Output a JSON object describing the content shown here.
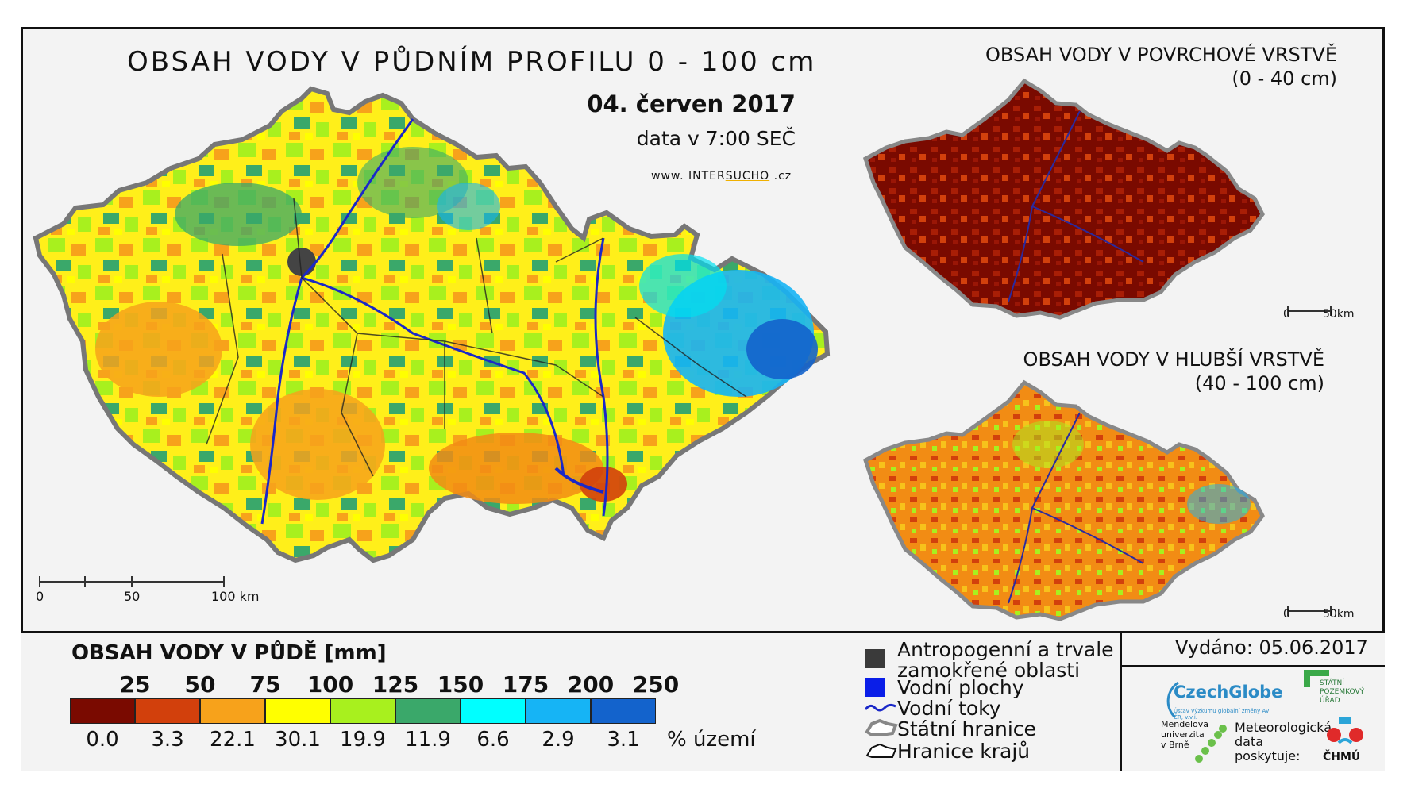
{
  "header": {
    "title": "OBSAH VODY V PŮDNÍM PROFILU 0 - 100 cm",
    "date": "04. červen 2017",
    "time": "data v 7:00 SEČ",
    "website_prefix": "www. INTER",
    "website_highlight": "SUCHO",
    "website_suffix": " .cz"
  },
  "inset_top": {
    "title_line1": "OBSAH VODY V POVRCHOVÉ VRSTVĚ",
    "title_line2": "(0 - 40 cm)",
    "scale_start": "0",
    "scale_end": "50km"
  },
  "inset_bottom": {
    "title_line1": "OBSAH VODY V HLUBŠÍ VRSTVĚ",
    "title_line2": "(40 - 100 cm)",
    "scale_start": "0",
    "scale_end": "50km"
  },
  "main_scale": {
    "labels": [
      "0",
      "50",
      "100 km"
    ]
  },
  "legend": {
    "title": "OBSAH VODY V PŮDĚ [mm]",
    "thresholds": [
      "25",
      "50",
      "75",
      "100",
      "125",
      "150",
      "175",
      "200",
      "250"
    ],
    "colors": [
      "#7a0a00",
      "#d2400c",
      "#f7a21b",
      "#ffff00",
      "#a8f01e",
      "#3aa86a",
      "#00ffff",
      "#16b4f5",
      "#1363cc"
    ],
    "percentages": [
      "0.0",
      "3.3",
      "22.1",
      "30.1",
      "19.9",
      "11.9",
      "6.6",
      "2.9",
      "3.1"
    ],
    "percent_unit": "% území"
  },
  "symbols": {
    "anthropogenic_line1": "Antropogenní a trvale",
    "anthropogenic_line2": "zamokřené oblasti",
    "anthropogenic_color": "#3a3a3a",
    "water_bodies": "Vodní plochy",
    "water_bodies_color": "#0a1ee8",
    "rivers": "Vodní toky",
    "rivers_color": "#1a28c8",
    "state_border": "Státní hranice",
    "region_border": "Hranice krajů"
  },
  "issued": {
    "label": "Vydáno: 05.06.2017"
  },
  "logos": {
    "czechglobe": "CzechGlobe",
    "czechglobe_sub": "Ústav výzkumu globální změny AV ČR, v.v.i.",
    "spu_line1": "STÁTNÍ",
    "spu_line2": "POZEMKOVÝ",
    "spu_line3": "ÚŘAD",
    "mendelu_line1": "Mendelova",
    "mendelu_line2": "univerzita",
    "mendelu_line3": "v Brně",
    "met_line1": "Meteorologická",
    "met_line2": "data",
    "met_line3": "poskytuje:",
    "chmu": "ČHMÚ"
  }
}
